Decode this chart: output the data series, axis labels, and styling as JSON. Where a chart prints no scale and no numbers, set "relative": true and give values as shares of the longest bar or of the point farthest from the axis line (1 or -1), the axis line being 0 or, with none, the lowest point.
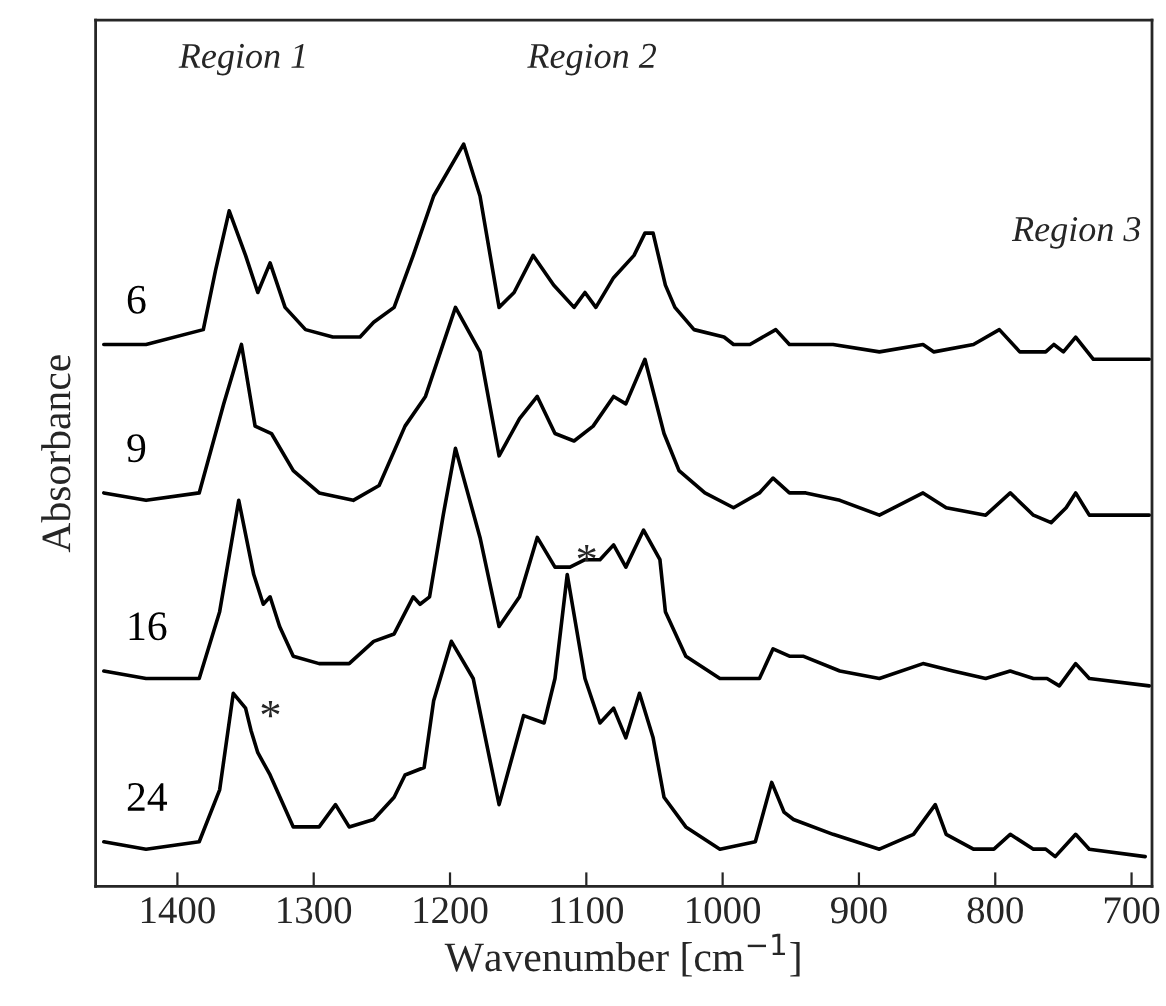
{
  "chart_data": {
    "type": "line",
    "relative": true,
    "xlabel": "Wavenumber [cm$^{−1}$]",
    "ylabel": "Absorbance",
    "xlim": [
      1460,
      685
    ],
    "xticks": [
      1400,
      1300,
      1200,
      1100,
      1000,
      900,
      800,
      700
    ],
    "tick_labels": "x",
    "grid": false,
    "line_style": "solid",
    "marker": "none",
    "annotations": [
      "Region 1",
      "Region 2",
      "Region 3",
      {
        "text": "*",
        "x": 1114,
        "y": 0.42
      },
      {
        "text": "*",
        "x": 1346,
        "y": 0.21
      }
    ],
    "series": [
      {
        "name": "6",
        "color": "#000000",
        "x": [
          1454,
          1423,
          1381,
          1372,
          1362,
          1350,
          1341,
          1332,
          1321,
          1306,
          1286,
          1266,
          1256,
          1241,
          1227,
          1212,
          1190,
          1178,
          1164,
          1153,
          1139,
          1124,
          1109,
          1101,
          1093,
          1080,
          1065,
          1057,
          1051,
          1042,
          1035,
          1021,
          999,
          992,
          980,
          961,
          951,
          939,
          919,
          885,
          853,
          845,
          816,
          797,
          782,
          763,
          757,
          750,
          741,
          728,
          687
        ],
        "values": [
          0.73,
          0.73,
          0.75,
          0.83,
          0.91,
          0.85,
          0.8,
          0.84,
          0.78,
          0.75,
          0.74,
          0.74,
          0.76,
          0.78,
          0.85,
          0.93,
          1.0,
          0.93,
          0.78,
          0.8,
          0.85,
          0.81,
          0.78,
          0.8,
          0.78,
          0.82,
          0.85,
          0.88,
          0.88,
          0.81,
          0.78,
          0.75,
          0.74,
          0.73,
          0.73,
          0.75,
          0.73,
          0.73,
          0.73,
          0.72,
          0.73,
          0.72,
          0.73,
          0.75,
          0.72,
          0.72,
          0.73,
          0.72,
          0.74,
          0.71,
          0.71
        ]
      },
      {
        "name": "9",
        "color": "#000000",
        "x": [
          1454,
          1423,
          1384,
          1366,
          1353,
          1343,
          1331,
          1315,
          1296,
          1271,
          1252,
          1233,
          1218,
          1196,
          1178,
          1164,
          1149,
          1136,
          1123,
          1109,
          1095,
          1080,
          1071,
          1057,
          1043,
          1032,
          1013,
          992,
          973,
          963,
          951,
          939,
          914,
          885,
          853,
          836,
          807,
          789,
          772,
          759,
          748,
          741,
          731,
          687
        ],
        "values": [
          0.53,
          0.52,
          0.53,
          0.65,
          0.73,
          0.62,
          0.61,
          0.56,
          0.53,
          0.52,
          0.54,
          0.62,
          0.66,
          0.78,
          0.72,
          0.58,
          0.63,
          0.66,
          0.61,
          0.6,
          0.62,
          0.66,
          0.65,
          0.71,
          0.61,
          0.56,
          0.53,
          0.51,
          0.53,
          0.55,
          0.53,
          0.53,
          0.52,
          0.5,
          0.53,
          0.51,
          0.5,
          0.53,
          0.5,
          0.49,
          0.51,
          0.53,
          0.5,
          0.5
        ]
      },
      {
        "name": "16",
        "color": "#000000",
        "x": [
          1454,
          1423,
          1384,
          1369,
          1355,
          1344,
          1337,
          1332,
          1325,
          1315,
          1296,
          1274,
          1256,
          1241,
          1227,
          1222,
          1215,
          1205,
          1196,
          1178,
          1164,
          1149,
          1136,
          1123,
          1112,
          1101,
          1090,
          1080,
          1071,
          1058,
          1046,
          1042,
          1027,
          1002,
          973,
          963,
          951,
          941,
          914,
          885,
          853,
          831,
          807,
          789,
          772,
          762,
          753,
          741,
          731,
          687
        ],
        "values": [
          0.29,
          0.28,
          0.28,
          0.37,
          0.52,
          0.42,
          0.38,
          0.39,
          0.35,
          0.31,
          0.3,
          0.3,
          0.33,
          0.34,
          0.39,
          0.38,
          0.39,
          0.5,
          0.59,
          0.47,
          0.35,
          0.39,
          0.47,
          0.43,
          0.43,
          0.44,
          0.44,
          0.46,
          0.43,
          0.48,
          0.44,
          0.37,
          0.31,
          0.28,
          0.28,
          0.32,
          0.31,
          0.31,
          0.29,
          0.28,
          0.3,
          0.29,
          0.28,
          0.29,
          0.28,
          0.28,
          0.27,
          0.3,
          0.28,
          0.27
        ]
      },
      {
        "name": "24",
        "color": "#000000",
        "x": [
          1454,
          1423,
          1384,
          1369,
          1359,
          1350,
          1346,
          1341,
          1332,
          1315,
          1296,
          1284,
          1274,
          1256,
          1241,
          1233,
          1219,
          1212,
          1199,
          1183,
          1164,
          1152,
          1146,
          1131,
          1123,
          1114,
          1101,
          1090,
          1080,
          1071,
          1061,
          1051,
          1043,
          1027,
          1002,
          976,
          964,
          955,
          948,
          919,
          885,
          860,
          844,
          836,
          816,
          801,
          789,
          772,
          763,
          756,
          741,
          731,
          690
        ],
        "values": [
          0.06,
          0.05,
          0.06,
          0.13,
          0.26,
          0.24,
          0.21,
          0.18,
          0.15,
          0.08,
          0.08,
          0.11,
          0.08,
          0.09,
          0.12,
          0.15,
          0.16,
          0.25,
          0.33,
          0.28,
          0.11,
          0.19,
          0.23,
          0.22,
          0.28,
          0.42,
          0.28,
          0.22,
          0.24,
          0.2,
          0.26,
          0.2,
          0.12,
          0.08,
          0.05,
          0.06,
          0.14,
          0.1,
          0.09,
          0.07,
          0.05,
          0.07,
          0.11,
          0.07,
          0.05,
          0.05,
          0.07,
          0.05,
          0.05,
          0.04,
          0.07,
          0.05,
          0.04
        ]
      }
    ]
  }
}
